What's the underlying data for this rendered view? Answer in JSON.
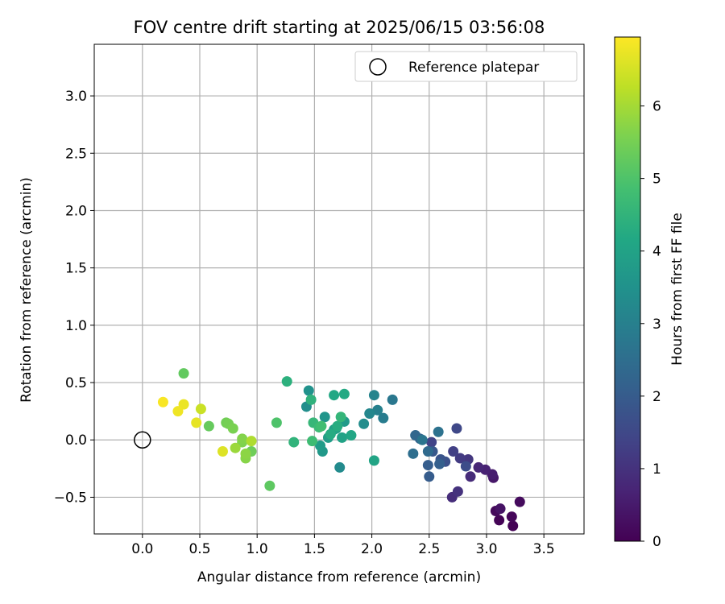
{
  "chart_data": {
    "type": "scatter",
    "title": "FOV centre drift starting at 2025/06/15 03:56:08",
    "xlabel": "Angular distance from reference (arcmin)",
    "ylabel": "Rotation from reference (arcmin)",
    "xlim": [
      -0.42,
      3.85
    ],
    "ylim": [
      -0.82,
      3.45
    ],
    "xticks": [
      "0.0",
      "0.5",
      "1.0",
      "1.5",
      "2.0",
      "2.5",
      "3.0",
      "3.5"
    ],
    "yticks": [
      "−0.5",
      "0.0",
      "0.5",
      "1.0",
      "1.5",
      "2.0",
      "2.5",
      "3.0"
    ],
    "grid": true,
    "legend": {
      "placement": "top-right",
      "label": "Reference platepar"
    },
    "reference_point": {
      "x": 0.0,
      "y": 0.0
    },
    "colorbar": {
      "label": "Hours from first FF file",
      "range": [
        0,
        6.95
      ],
      "ticks": [
        "0",
        "1",
        "2",
        "3",
        "4",
        "5",
        "6"
      ],
      "colormap": [
        "#440154",
        "#482475",
        "#414487",
        "#355f8d",
        "#2a788e",
        "#21918c",
        "#22a884",
        "#44bf70",
        "#7ad151",
        "#bddf26",
        "#fde725"
      ]
    },
    "points": [
      {
        "x": 3.23,
        "y": -0.75,
        "h": 0.02
      },
      {
        "x": 3.11,
        "y": -0.7,
        "h": 0.05
      },
      {
        "x": 3.22,
        "y": -0.67,
        "h": 0.1
      },
      {
        "x": 3.08,
        "y": -0.62,
        "h": 0.15
      },
      {
        "x": 3.29,
        "y": -0.54,
        "h": 0.2
      },
      {
        "x": 3.12,
        "y": -0.6,
        "h": 0.35
      },
      {
        "x": 3.06,
        "y": -0.33,
        "h": 0.45
      },
      {
        "x": 3.05,
        "y": -0.3,
        "h": 0.55
      },
      {
        "x": 2.99,
        "y": -0.26,
        "h": 0.65
      },
      {
        "x": 2.93,
        "y": -0.24,
        "h": 0.75
      },
      {
        "x": 2.86,
        "y": -0.32,
        "h": 0.85
      },
      {
        "x": 2.7,
        "y": -0.5,
        "h": 0.9
      },
      {
        "x": 2.75,
        "y": -0.45,
        "h": 1.0
      },
      {
        "x": 2.84,
        "y": -0.17,
        "h": 1.1
      },
      {
        "x": 2.77,
        "y": -0.16,
        "h": 1.2
      },
      {
        "x": 2.71,
        "y": -0.1,
        "h": 1.3
      },
      {
        "x": 2.52,
        "y": -0.02,
        "h": 1.4
      },
      {
        "x": 2.74,
        "y": 0.1,
        "h": 1.5
      },
      {
        "x": 2.82,
        "y": -0.23,
        "h": 1.6
      },
      {
        "x": 2.64,
        "y": -0.19,
        "h": 1.7
      },
      {
        "x": 2.6,
        "y": -0.17,
        "h": 1.8
      },
      {
        "x": 2.53,
        "y": -0.1,
        "h": 1.9
      },
      {
        "x": 2.5,
        "y": -0.32,
        "h": 2.0
      },
      {
        "x": 2.49,
        "y": -0.22,
        "h": 2.05
      },
      {
        "x": 2.59,
        "y": -0.21,
        "h": 2.1
      },
      {
        "x": 2.42,
        "y": 0.01,
        "h": 2.2
      },
      {
        "x": 2.38,
        "y": 0.04,
        "h": 2.3
      },
      {
        "x": 2.49,
        "y": -0.1,
        "h": 2.4
      },
      {
        "x": 2.36,
        "y": -0.12,
        "h": 2.5
      },
      {
        "x": 2.58,
        "y": 0.07,
        "h": 2.6
      },
      {
        "x": 2.44,
        "y": 0.0,
        "h": 2.7
      },
      {
        "x": 2.18,
        "y": 0.35,
        "h": 2.75
      },
      {
        "x": 2.1,
        "y": 0.19,
        "h": 2.9
      },
      {
        "x": 2.05,
        "y": 0.26,
        "h": 3.0
      },
      {
        "x": 2.02,
        "y": 0.39,
        "h": 3.1
      },
      {
        "x": 1.98,
        "y": 0.23,
        "h": 3.2
      },
      {
        "x": 1.72,
        "y": -0.24,
        "h": 3.3
      },
      {
        "x": 1.93,
        "y": 0.14,
        "h": 3.35
      },
      {
        "x": 1.43,
        "y": 0.29,
        "h": 3.4
      },
      {
        "x": 1.45,
        "y": 0.43,
        "h": 3.5
      },
      {
        "x": 1.59,
        "y": 0.2,
        "h": 3.6
      },
      {
        "x": 1.57,
        "y": -0.1,
        "h": 3.7
      },
      {
        "x": 1.76,
        "y": 0.16,
        "h": 3.75
      },
      {
        "x": 1.55,
        "y": -0.05,
        "h": 3.8
      },
      {
        "x": 1.62,
        "y": 0.02,
        "h": 3.85
      },
      {
        "x": 1.67,
        "y": 0.09,
        "h": 3.9
      },
      {
        "x": 1.69,
        "y": 0.1,
        "h": 3.95
      },
      {
        "x": 1.74,
        "y": 0.02,
        "h": 4.0
      },
      {
        "x": 2.02,
        "y": -0.18,
        "h": 4.05
      },
      {
        "x": 1.82,
        "y": 0.04,
        "h": 4.1
      },
      {
        "x": 1.67,
        "y": 0.39,
        "h": 4.15
      },
      {
        "x": 1.76,
        "y": 0.4,
        "h": 4.2
      },
      {
        "x": 1.64,
        "y": 0.05,
        "h": 4.25
      },
      {
        "x": 1.7,
        "y": 0.12,
        "h": 4.3
      },
      {
        "x": 1.26,
        "y": 0.51,
        "h": 4.4
      },
      {
        "x": 1.47,
        "y": 0.35,
        "h": 4.45
      },
      {
        "x": 1.32,
        "y": -0.02,
        "h": 4.5
      },
      {
        "x": 1.73,
        "y": 0.2,
        "h": 4.55
      },
      {
        "x": 1.49,
        "y": 0.15,
        "h": 4.6
      },
      {
        "x": 1.54,
        "y": 0.11,
        "h": 4.7
      },
      {
        "x": 1.48,
        "y": -0.01,
        "h": 4.75
      },
      {
        "x": 1.56,
        "y": 0.12,
        "h": 4.8
      },
      {
        "x": 1.17,
        "y": 0.15,
        "h": 5.0
      },
      {
        "x": 1.11,
        "y": -0.4,
        "h": 5.2
      },
      {
        "x": 0.36,
        "y": 0.58,
        "h": 5.25
      },
      {
        "x": 0.58,
        "y": 0.12,
        "h": 5.3
      },
      {
        "x": 0.95,
        "y": -0.1,
        "h": 5.4
      },
      {
        "x": 0.73,
        "y": 0.15,
        "h": 5.45
      },
      {
        "x": 0.75,
        "y": 0.14,
        "h": 5.5
      },
      {
        "x": 0.79,
        "y": 0.1,
        "h": 5.55
      },
      {
        "x": 0.87,
        "y": -0.02,
        "h": 5.6
      },
      {
        "x": 0.87,
        "y": 0.01,
        "h": 5.65
      },
      {
        "x": 0.9,
        "y": -0.16,
        "h": 5.7
      },
      {
        "x": 0.9,
        "y": -0.12,
        "h": 5.75
      },
      {
        "x": 0.81,
        "y": -0.07,
        "h": 5.9
      },
      {
        "x": 0.95,
        "y": -0.01,
        "h": 6.1
      },
      {
        "x": 0.51,
        "y": 0.27,
        "h": 6.4
      },
      {
        "x": 0.7,
        "y": -0.1,
        "h": 6.6
      },
      {
        "x": 0.47,
        "y": 0.15,
        "h": 6.7
      },
      {
        "x": 0.36,
        "y": 0.31,
        "h": 6.75
      },
      {
        "x": 0.31,
        "y": 0.25,
        "h": 6.8
      },
      {
        "x": 0.18,
        "y": 0.33,
        "h": 6.9
      }
    ]
  }
}
